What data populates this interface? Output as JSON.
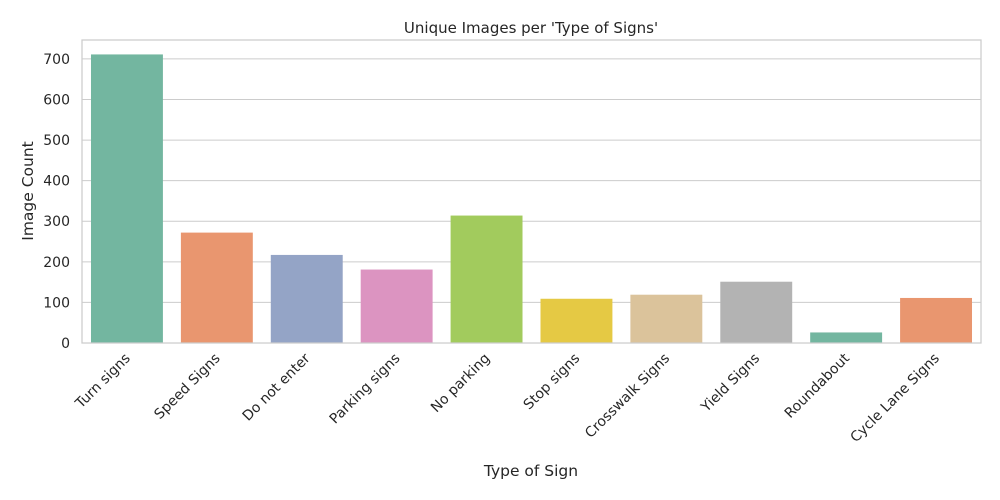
{
  "chart_data": {
    "type": "bar",
    "title": "Unique Images per 'Type of Signs'",
    "xlabel": "Type of Sign",
    "ylabel": "Image Count",
    "categories": [
      "Turn signs",
      "Speed Signs",
      "Do not enter",
      "Parking signs",
      "No parking",
      "Stop signs",
      "Crosswalk Signs",
      "Yield Signs",
      "Roundabout",
      "Cycle Lane Signs"
    ],
    "values": [
      711,
      272,
      217,
      181,
      314,
      109,
      119,
      151,
      26,
      111
    ],
    "colors": [
      "#73b6a0",
      "#e9966f",
      "#94a4c6",
      "#dc94c1",
      "#a2cb5d",
      "#e5c944",
      "#dbc39b",
      "#b3b3b3",
      "#73b6a0",
      "#e9966f"
    ],
    "yticks": [
      0,
      100,
      200,
      300,
      400,
      500,
      600,
      700
    ],
    "ylim": [
      0,
      746.55
    ],
    "grid": "horizontal",
    "legend": "none"
  }
}
